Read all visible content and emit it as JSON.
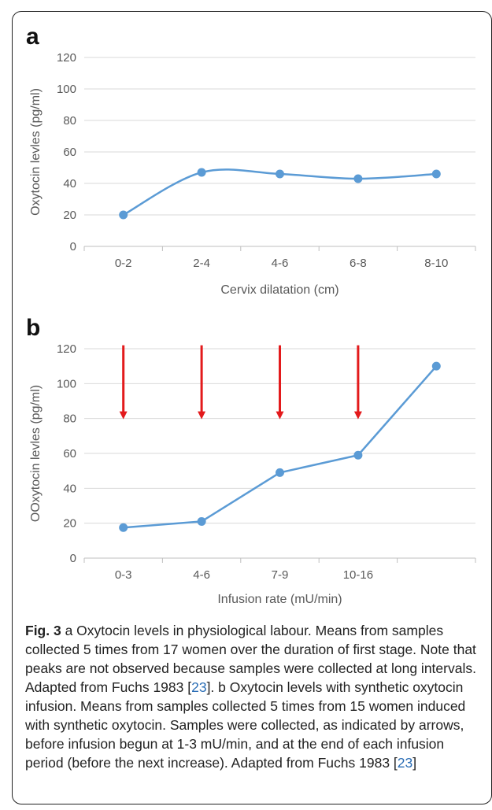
{
  "figure": {
    "panel_a_label": "a",
    "panel_b_label": "b",
    "caption": {
      "fig_label": "Fig. 3",
      "part1": " a Oxytocin levels in physiological labour. Means from samples collected 5 times from 17 women over the duration of first stage. Note that peaks are not observed because samples were collected at long intervals. Adapted from Fuchs 1983 [",
      "ref1": "23",
      "part2": "]. b Oxytocin levels with synthetic oxytocin infusion. Means from samples collected 5 times from 15 women induced with synthetic oxytocin. Samples were collected, as indicated by arrows, before infusion begun at 1-3 mU/min, and at the end of each infusion period (before the next increase). Adapted from Fuchs 1983 [",
      "ref2": "23",
      "part3": "]"
    }
  },
  "chart_data": [
    {
      "type": "line",
      "panel": "a",
      "categories": [
        "0-2",
        "2-4",
        "4-6",
        "6-8",
        "8-10"
      ],
      "series": [
        {
          "values": [
            20,
            47,
            46,
            43,
            46
          ],
          "color": "#5b9bd5"
        }
      ],
      "xlabel": "Cervix dilatation (cm)",
      "ylabel": "Oxytocin  levles (pg/ml)",
      "ylim": [
        0,
        120
      ],
      "yticks": [
        0,
        20,
        40,
        60,
        80,
        100,
        120
      ],
      "smooth": true,
      "grid": true
    },
    {
      "type": "line",
      "panel": "b",
      "categories": [
        "0-3",
        "4-6",
        "7-9",
        "10-16",
        ""
      ],
      "series": [
        {
          "values": [
            17.5,
            21,
            49,
            59,
            110
          ],
          "color": "#5b9bd5"
        }
      ],
      "annotations": {
        "arrows_at_categories": [
          "0-3",
          "4-6",
          "7-9",
          "10-16"
        ],
        "arrow_from_y": 122,
        "arrow_to_y": 80,
        "arrow_color": "#e31a1c"
      },
      "xlabel": "Infusion rate (mU/min)",
      "ylabel": "OOxytocin levles (pg/ml)",
      "ylim": [
        0,
        120
      ],
      "yticks": [
        0,
        20,
        40,
        60,
        80,
        100,
        120
      ],
      "smooth": false,
      "grid": true
    }
  ]
}
